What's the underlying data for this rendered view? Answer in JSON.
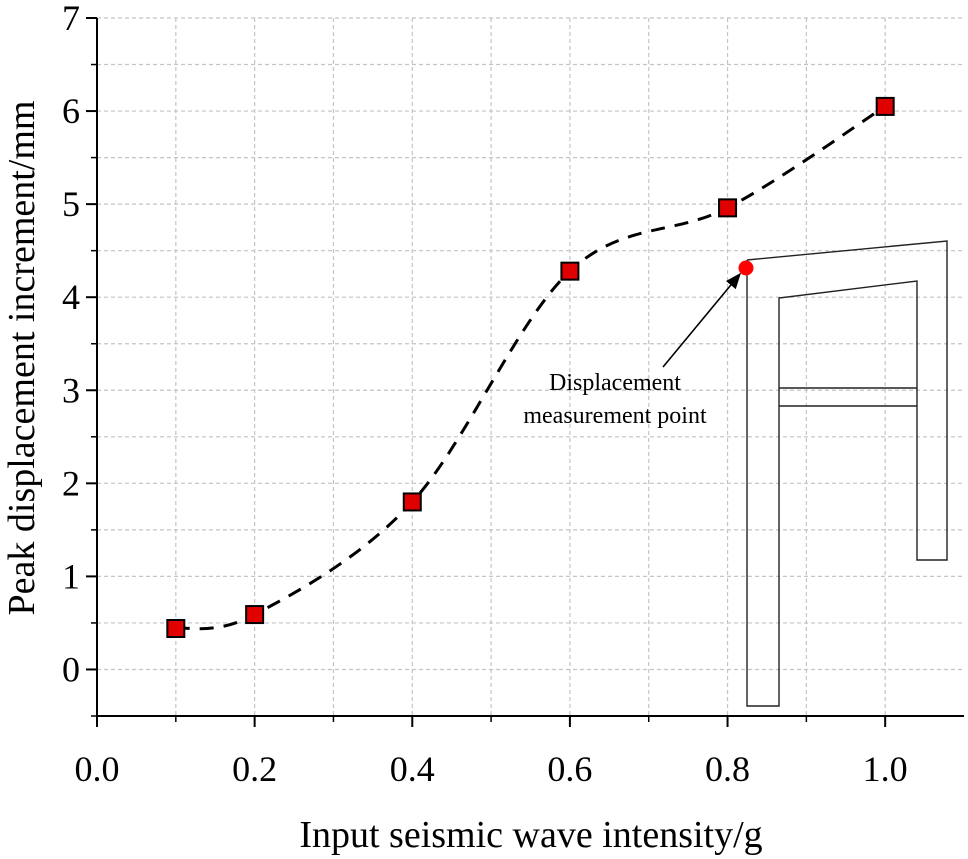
{
  "chart_data": {
    "type": "line",
    "title": "",
    "xlabel": "Input seismic wave intensity/g",
    "ylabel": "Peak displacement increment/mm",
    "xlim": [
      0.0,
      1.1
    ],
    "ylim": [
      -0.5,
      7.0
    ],
    "x_ticks": [
      "0.0",
      "0.2",
      "0.4",
      "0.6",
      "0.8",
      "1.0"
    ],
    "y_ticks": [
      "0",
      "1",
      "2",
      "3",
      "4",
      "5",
      "6",
      "7"
    ],
    "grid": true,
    "line_style": "dashed",
    "smooth": true,
    "marker": "square",
    "series": [
      {
        "x": [
          0.1,
          0.2,
          0.4,
          0.6,
          0.8,
          1.0
        ],
        "y": [
          0.44,
          0.59,
          1.8,
          4.28,
          4.96,
          6.05
        ],
        "marker_color": "#e00000",
        "line_color": "#000000"
      }
    ],
    "annotation": {
      "line1": "Displacement",
      "line2": "measurement point",
      "point_color": "#ff0000"
    }
  }
}
